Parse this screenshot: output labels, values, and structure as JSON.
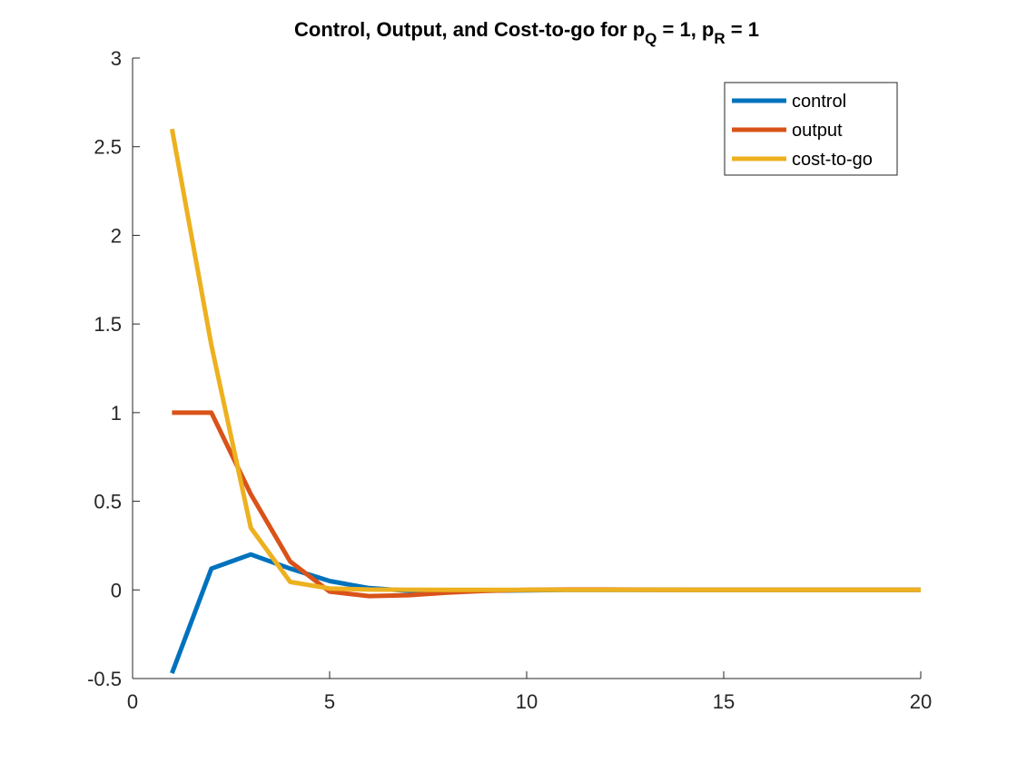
{
  "chart_data": {
    "type": "line",
    "title": {
      "main": "Control, Output, and Cost-to-go for p",
      "sub1": "Q",
      "mid": " = 1, p",
      "sub2": "R",
      "end": " = 1"
    },
    "xlabel": "",
    "ylabel": "",
    "xlim": [
      0,
      20
    ],
    "ylim": [
      -0.5,
      3
    ],
    "xticks": [
      0,
      5,
      10,
      15,
      20
    ],
    "xtick_labels": [
      "0",
      "5",
      "10",
      "15",
      "20"
    ],
    "yticks": [
      -0.5,
      0,
      0.5,
      1,
      1.5,
      2,
      2.5,
      3
    ],
    "ytick_labels": [
      "-0.5",
      "0",
      "0.5",
      "1",
      "1.5",
      "2",
      "2.5",
      "3"
    ],
    "grid": false,
    "legend_position": "top-right",
    "x": [
      1,
      2,
      3,
      4,
      5,
      6,
      7,
      8,
      9,
      10,
      11,
      12,
      13,
      14,
      15,
      16,
      17,
      18,
      19,
      20
    ],
    "series": [
      {
        "name": "control",
        "color": "#0072BD",
        "values": [
          -0.47,
          0.12,
          0.2,
          0.12,
          0.05,
          0.01,
          -0.005,
          -0.006,
          -0.004,
          -0.002,
          0,
          0,
          0,
          0,
          0,
          0,
          0,
          0,
          0,
          0
        ]
      },
      {
        "name": "output",
        "color": "#D95319",
        "values": [
          1.0,
          1.0,
          0.54,
          0.16,
          -0.01,
          -0.035,
          -0.03,
          -0.015,
          -0.005,
          0.0,
          0.002,
          0.002,
          0.001,
          0,
          0,
          0,
          0,
          0,
          0,
          0
        ]
      },
      {
        "name": "cost-to-go",
        "color": "#EDB120",
        "values": [
          2.6,
          1.38,
          0.35,
          0.045,
          0.008,
          0.002,
          0.001,
          0,
          0,
          0,
          0,
          0,
          0,
          0,
          0,
          0,
          0,
          0,
          0,
          0
        ]
      }
    ]
  }
}
